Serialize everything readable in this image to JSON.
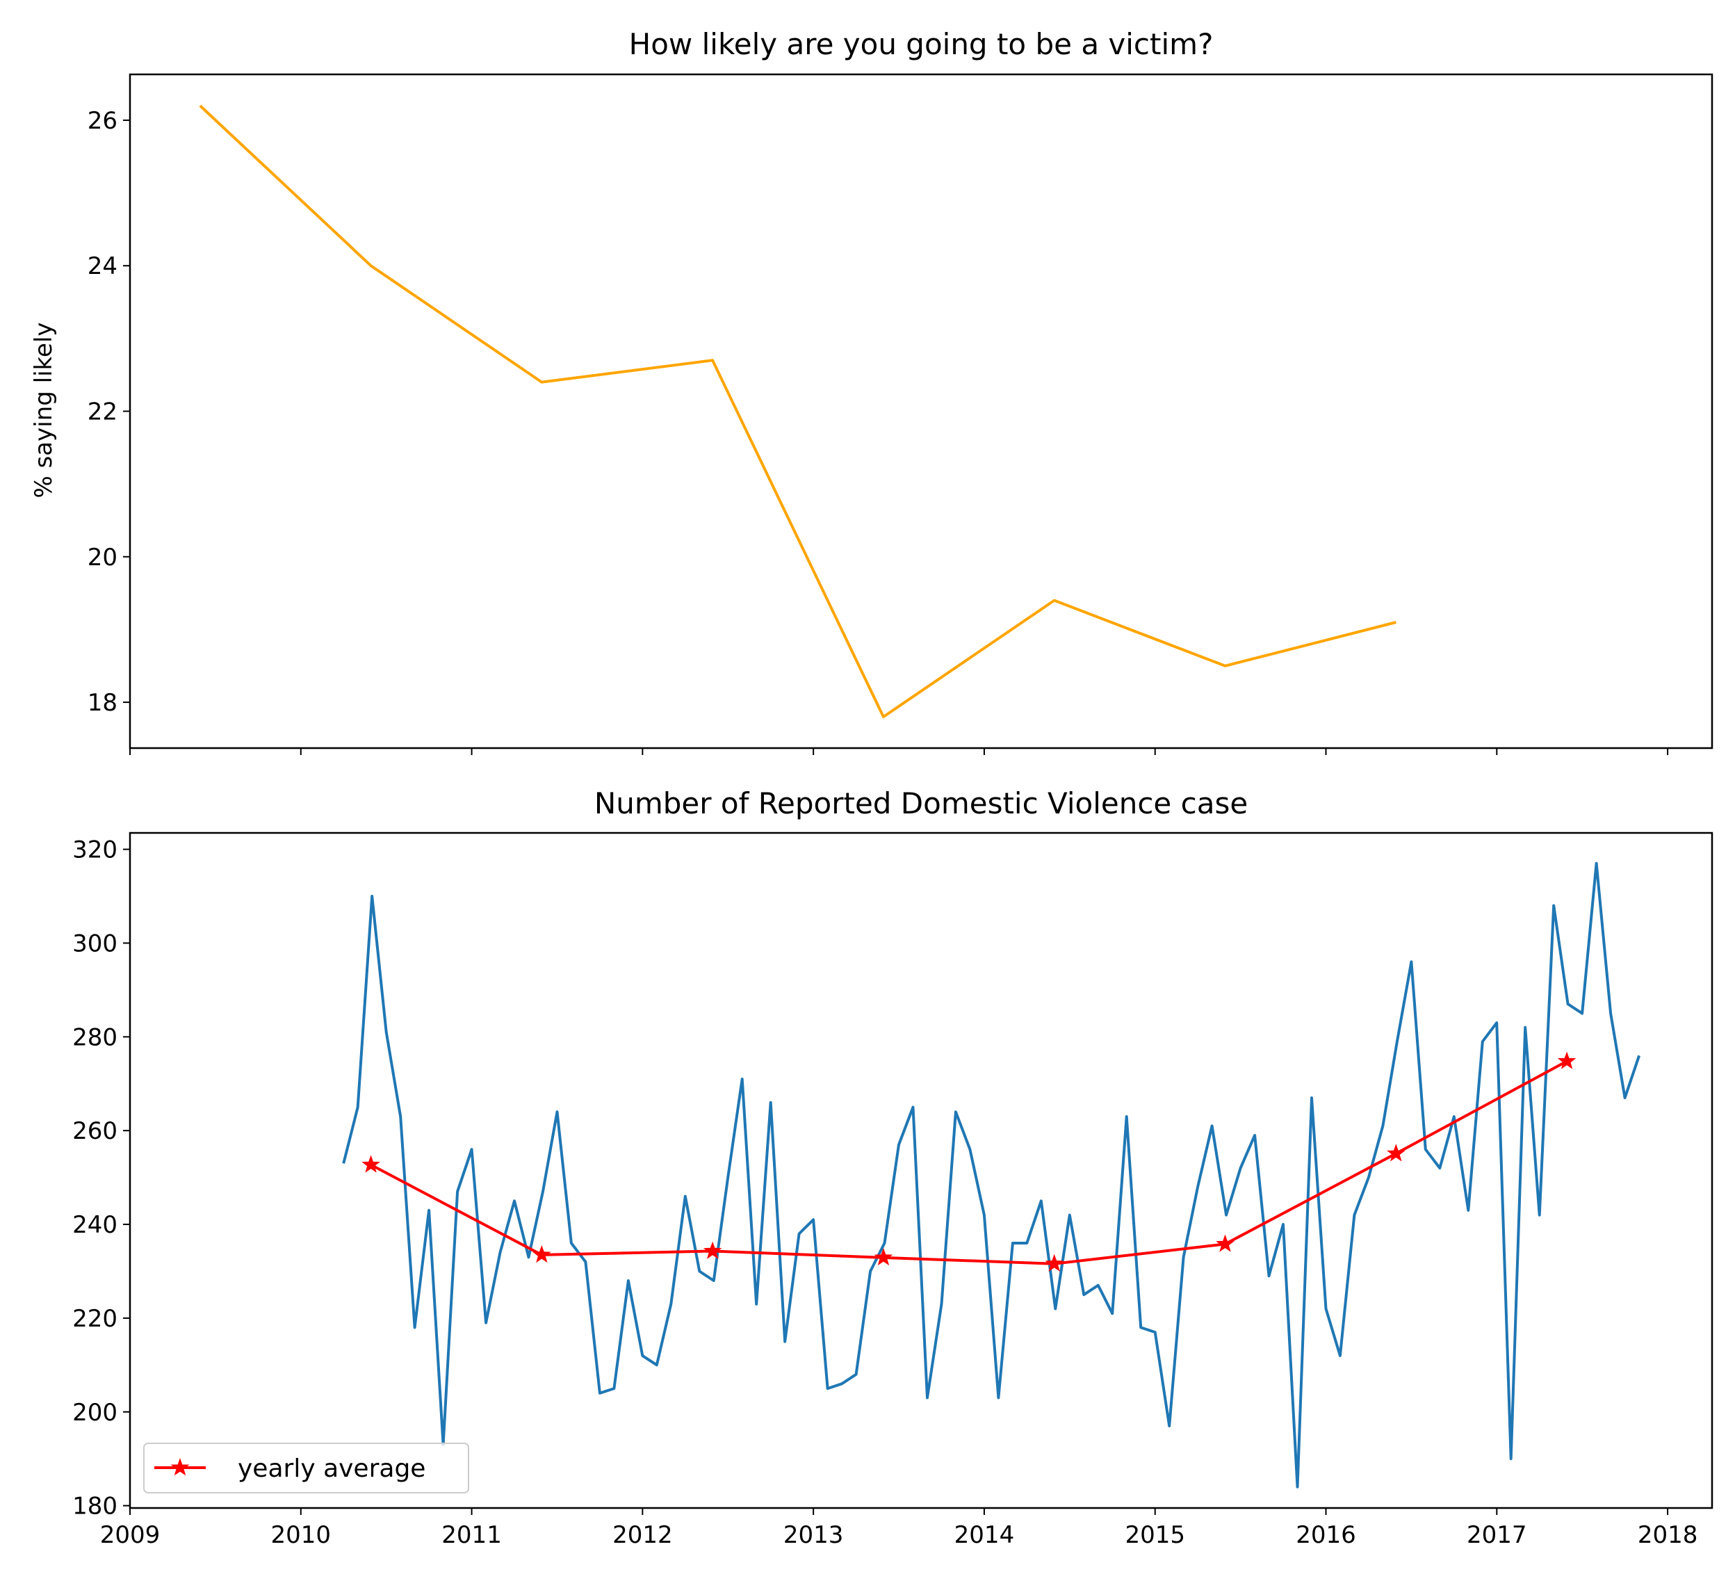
{
  "chart_data": [
    {
      "type": "line",
      "title": "How likely are you going to be a victim?",
      "xlabel": "",
      "ylabel": "% saying likely",
      "xlim": [
        2009.0,
        2018.26
      ],
      "ylim": [
        17.37,
        26.63
      ],
      "y_ticks": [
        18,
        20,
        22,
        24,
        26
      ],
      "x_ticks_labeled": false,
      "series": [
        {
          "color": "#ffa500",
          "x": [
            2009.41,
            2010.41,
            2011.41,
            2012.41,
            2013.41,
            2014.41,
            2015.41,
            2016.41
          ],
          "values": [
            26.2,
            24.0,
            22.4,
            22.7,
            17.8,
            19.4,
            18.5,
            19.1
          ]
        }
      ]
    },
    {
      "type": "line",
      "title": "Number of Reported Domestic Violence case",
      "xlabel": "",
      "ylabel": "",
      "xlim": [
        2009.0,
        2018.26
      ],
      "ylim": [
        179.5,
        323.5
      ],
      "x_ticks": [
        "2009",
        "2010",
        "2011",
        "2012",
        "2013",
        "2014",
        "2015",
        "2016",
        "2017",
        "2018"
      ],
      "y_ticks": [
        180,
        200,
        220,
        240,
        260,
        280,
        300,
        320
      ],
      "legend": {
        "position": "lower-left",
        "entries": [
          "yearly average"
        ]
      },
      "series": [
        {
          "color": "#1f77b4",
          "x_start": 2010.25,
          "x_step": 0.08333,
          "values": [
            253,
            265,
            310,
            281,
            263,
            218,
            243,
            193,
            247,
            256,
            219,
            234,
            245,
            233,
            247,
            264,
            236,
            232,
            204,
            205,
            228,
            212,
            210,
            223,
            246,
            230,
            228,
            250,
            271,
            223,
            266,
            215,
            238,
            241,
            205,
            206,
            208,
            230,
            236,
            257,
            265,
            203,
            223,
            264,
            256,
            242,
            203,
            236,
            236,
            245,
            222,
            242,
            225,
            227,
            221,
            263,
            218,
            217,
            197,
            233,
            248,
            261,
            242,
            252,
            259,
            229,
            240,
            184,
            267,
            222,
            212,
            242,
            250,
            261,
            279,
            296,
            256,
            252,
            263,
            243,
            279,
            283,
            190,
            282,
            242,
            308,
            287,
            285,
            317,
            285,
            267,
            276
          ]
        },
        {
          "name": "yearly average",
          "color": "#ff0000",
          "marker": "star",
          "x": [
            2010.41,
            2011.41,
            2012.41,
            2013.41,
            2014.41,
            2015.41,
            2016.41,
            2017.41
          ],
          "values": [
            252.7,
            233.5,
            234.3,
            232.9,
            231.6,
            235.8,
            255.1,
            274.8
          ]
        }
      ]
    }
  ]
}
